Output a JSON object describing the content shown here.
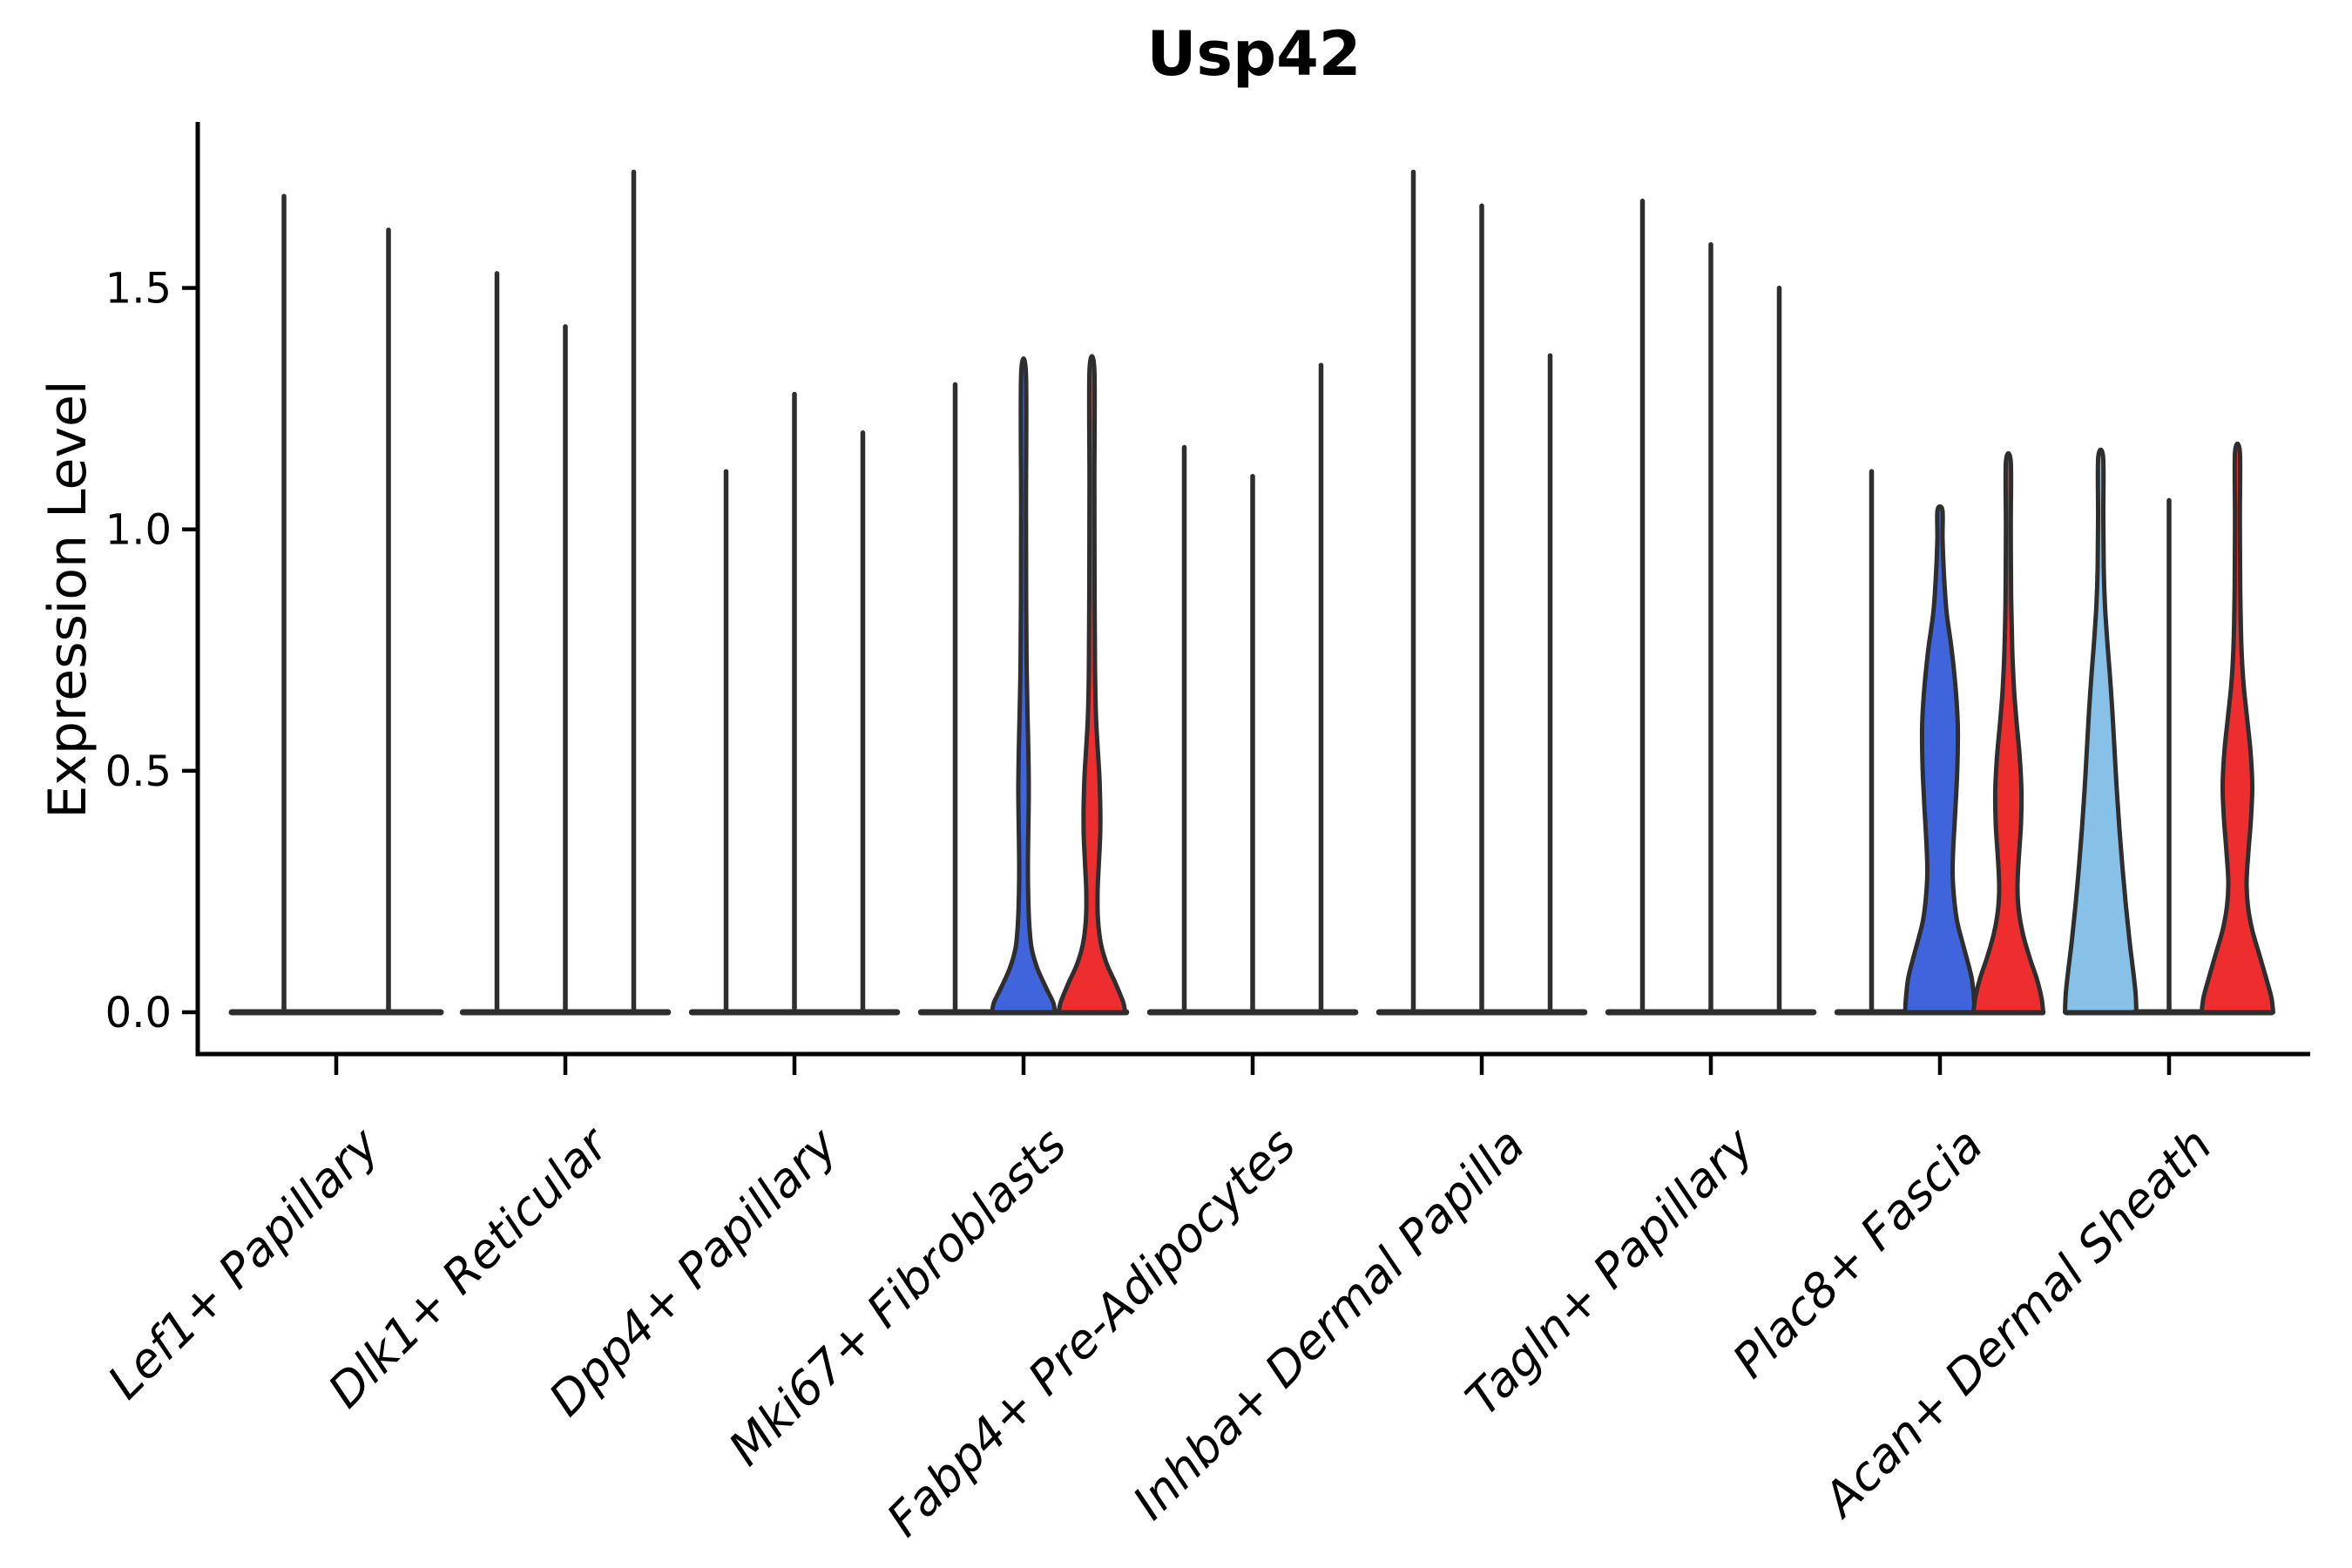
{
  "chart_data": {
    "type": "violin",
    "title": "Usp42",
    "ylabel": "Expression Level",
    "xlabel": "",
    "ylim": [
      -0.088,
      1.844
    ],
    "grid": false,
    "legend": "none",
    "yticks": {
      "values": [
        0.0,
        0.5,
        1.0,
        1.5
      ],
      "labels": [
        "0.0",
        "0.5",
        "1.0",
        "1.5"
      ]
    },
    "colors": {
      "outline": "#2e2e2e",
      "spine": "#000000",
      "blue": "#3f64dc",
      "red": "#ee2e2e",
      "lightblue": "#87c1e8"
    },
    "categories": [
      "Lef1+ Papillary",
      "Dlk1+ Reticular",
      "Dpp4+ Papillary",
      "Mki67+ Fibroblasts",
      "Fabp4+ Pre-Adipocytes",
      "Inhba+ Dermal Papilla",
      "Tagln+ Papillary",
      "Plac8+ Fascia",
      "Acan+ Dermal Sheath"
    ],
    "groups": [
      {
        "category": "Lef1+ Papillary",
        "violins": [
          {
            "max": 1.69,
            "color": "plain"
          },
          {
            "max": 1.62,
            "color": "plain"
          }
        ]
      },
      {
        "category": "Dlk1+ Reticular",
        "violins": [
          {
            "max": 1.53,
            "color": "plain"
          },
          {
            "max": 1.42,
            "color": "plain"
          },
          {
            "max": 1.74,
            "color": "plain"
          }
        ]
      },
      {
        "category": "Dpp4+ Papillary",
        "violins": [
          {
            "max": 1.12,
            "color": "plain"
          },
          {
            "max": 1.28,
            "color": "plain"
          },
          {
            "max": 1.2,
            "color": "plain"
          }
        ]
      },
      {
        "category": "Mki67+ Fibroblasts",
        "violins": [
          {
            "max": 1.3,
            "color": "plain"
          },
          {
            "max": 1.32,
            "color": "blue",
            "profile": [
              [
                0,
                36
              ],
              [
                0.02,
                34
              ],
              [
                0.05,
                26
              ],
              [
                0.09,
                16
              ],
              [
                0.13,
                9.5
              ],
              [
                0.17,
                7
              ],
              [
                0.23,
                5.5
              ],
              [
                0.3,
                5
              ],
              [
                0.38,
                5.5
              ],
              [
                0.46,
                6
              ],
              [
                0.54,
                5.5
              ],
              [
                0.62,
                4.5
              ],
              [
                0.72,
                3.5
              ],
              [
                0.85,
                3
              ],
              [
                1.05,
                2.8
              ],
              [
                1.32,
                2.8
              ]
            ]
          },
          {
            "max": 1.33,
            "color": "red",
            "profile": [
              [
                0,
                38
              ],
              [
                0.02,
                36
              ],
              [
                0.06,
                27
              ],
              [
                0.1,
                17
              ],
              [
                0.14,
                10.5
              ],
              [
                0.19,
                7
              ],
              [
                0.25,
                6.5
              ],
              [
                0.31,
                8
              ],
              [
                0.37,
                9.5
              ],
              [
                0.43,
                9.5
              ],
              [
                0.49,
                8.5
              ],
              [
                0.55,
                6.5
              ],
              [
                0.62,
                4.5
              ],
              [
                0.72,
                3.5
              ],
              [
                0.9,
                3
              ],
              [
                1.1,
                2.8
              ],
              [
                1.33,
                2.8
              ]
            ]
          }
        ]
      },
      {
        "category": "Fabp4+ Pre-Adipocytes",
        "violins": [
          {
            "max": 1.17,
            "color": "plain"
          },
          {
            "max": 1.11,
            "color": "plain"
          },
          {
            "max": 1.34,
            "color": "plain"
          }
        ]
      },
      {
        "category": "Inhba+ Dermal Papilla",
        "violins": [
          {
            "max": 1.74,
            "color": "plain"
          },
          {
            "max": 1.67,
            "color": "plain"
          },
          {
            "max": 1.36,
            "color": "plain"
          }
        ]
      },
      {
        "category": "Tagln+ Papillary",
        "violins": [
          {
            "max": 1.68,
            "color": "plain"
          },
          {
            "max": 1.59,
            "color": "plain"
          },
          {
            "max": 1.5,
            "color": "plain"
          }
        ]
      },
      {
        "category": "Plac8+ Fascia",
        "violins": [
          {
            "max": 1.12,
            "color": "plain"
          },
          {
            "max": 1.04,
            "color": "blue",
            "profile": [
              [
                0,
                40
              ],
              [
                0.03,
                39
              ],
              [
                0.07,
                36.5
              ],
              [
                0.11,
                31
              ],
              [
                0.15,
                25
              ],
              [
                0.19,
                19.5
              ],
              [
                0.24,
                16
              ],
              [
                0.29,
                14.5
              ],
              [
                0.35,
                15.5
              ],
              [
                0.43,
                18
              ],
              [
                0.51,
                20
              ],
              [
                0.59,
                20.5
              ],
              [
                0.67,
                18
              ],
              [
                0.75,
                13.5
              ],
              [
                0.83,
                7.5
              ],
              [
                0.91,
                4.5
              ],
              [
                0.98,
                3
              ],
              [
                1.04,
                2.8
              ]
            ]
          },
          {
            "max": 1.14,
            "color": "red",
            "profile": [
              [
                0,
                40
              ],
              [
                0.03,
                38
              ],
              [
                0.07,
                32.5
              ],
              [
                0.11,
                25
              ],
              [
                0.16,
                17
              ],
              [
                0.21,
                12
              ],
              [
                0.26,
                10.5
              ],
              [
                0.32,
                12
              ],
              [
                0.39,
                14.5
              ],
              [
                0.46,
                15
              ],
              [
                0.53,
                13
              ],
              [
                0.6,
                9.5
              ],
              [
                0.67,
                6.5
              ],
              [
                0.75,
                4.5
              ],
              [
                0.86,
                3.2
              ],
              [
                1.0,
                2.8
              ],
              [
                1.14,
                2.8
              ]
            ]
          }
        ]
      },
      {
        "category": "Acan+ Dermal Sheath",
        "violins": [
          {
            "max": 1.15,
            "color": "lightblue",
            "profile": [
              [
                0,
                41
              ],
              [
                0.04,
                40
              ],
              [
                0.09,
                37
              ],
              [
                0.15,
                33
              ],
              [
                0.22,
                29
              ],
              [
                0.3,
                25
              ],
              [
                0.38,
                21.5
              ],
              [
                0.46,
                18.5
              ],
              [
                0.54,
                16
              ],
              [
                0.62,
                13.5
              ],
              [
                0.7,
                10.5
              ],
              [
                0.77,
                7.5
              ],
              [
                0.84,
                5
              ],
              [
                0.92,
                3.5
              ],
              [
                1.03,
                3
              ],
              [
                1.15,
                2.8
              ]
            ]
          },
          {
            "max": 1.06,
            "color": "plain"
          },
          {
            "max": 1.16,
            "color": "red",
            "profile": [
              [
                0,
                41
              ],
              [
                0.03,
                39
              ],
              [
                0.07,
                33
              ],
              [
                0.12,
                25
              ],
              [
                0.17,
                17
              ],
              [
                0.22,
                12
              ],
              [
                0.27,
                10.5
              ],
              [
                0.33,
                12.5
              ],
              [
                0.4,
                15.5
              ],
              [
                0.47,
                17
              ],
              [
                0.54,
                15
              ],
              [
                0.61,
                11
              ],
              [
                0.68,
                7
              ],
              [
                0.76,
                4.5
              ],
              [
                0.88,
                3.2
              ],
              [
                1.02,
                2.8
              ],
              [
                1.16,
                2.8
              ]
            ]
          }
        ]
      }
    ]
  }
}
